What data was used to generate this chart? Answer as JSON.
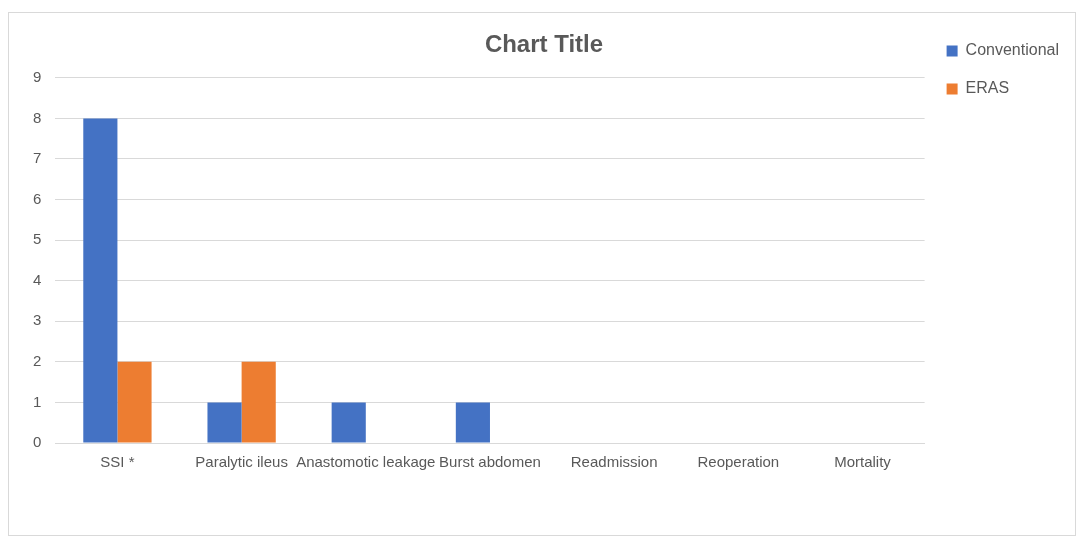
{
  "chart_data": {
    "type": "bar",
    "title": "Chart Title",
    "categories": [
      "SSI *",
      "Paralytic ileus",
      "Anastomotic leakage",
      "Burst abdomen",
      "Readmission",
      "Reoperation",
      "Mortality"
    ],
    "series": [
      {
        "name": "Conventional",
        "color": "#4472c4",
        "values": [
          8,
          1,
          1,
          1,
          0,
          0,
          0
        ]
      },
      {
        "name": "ERAS",
        "color": "#ed7d31",
        "values": [
          2,
          2,
          0,
          0,
          0,
          0,
          0
        ]
      }
    ],
    "ylim": [
      0,
      9
    ],
    "yticks": [
      0,
      1,
      2,
      3,
      4,
      5,
      6,
      7,
      8,
      9
    ],
    "grid": "y",
    "legend": "top right"
  }
}
